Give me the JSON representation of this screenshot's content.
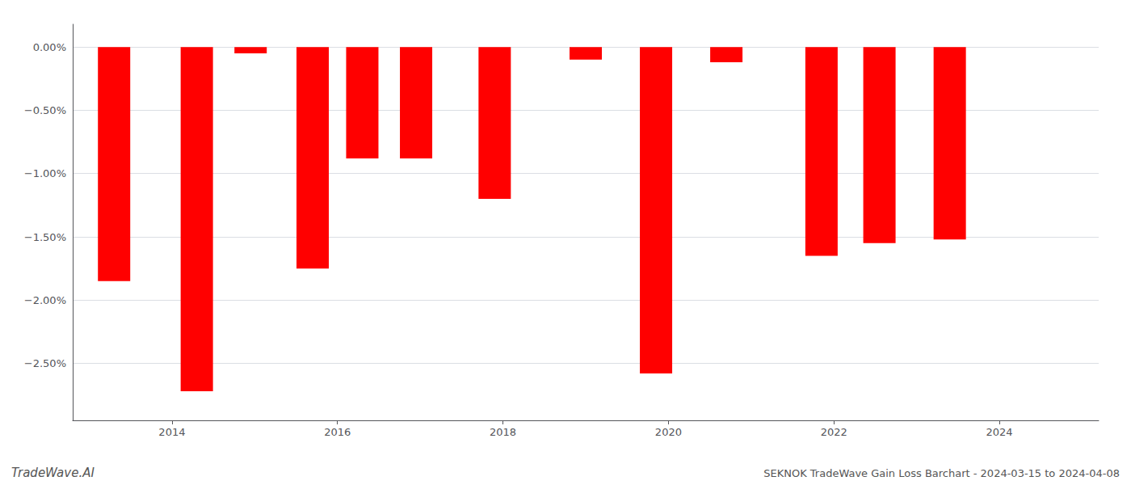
{
  "chart_data": {
    "type": "bar",
    "x": [
      2013.3,
      2014.3,
      2014.95,
      2015.7,
      2016.3,
      2016.95,
      2017.9,
      2019.0,
      2019.85,
      2020.7,
      2021.85,
      2022.55,
      2023.4
    ],
    "values": [
      -1.85,
      -2.72,
      -0.05,
      -1.75,
      -0.88,
      -0.88,
      -1.2,
      -0.1,
      -2.58,
      -0.12,
      -1.65,
      -1.55,
      -1.52
    ],
    "color": "#ff0000",
    "xlim": [
      2012.8,
      2025.2
    ],
    "xticks": [
      2014,
      2016,
      2018,
      2020,
      2022,
      2024
    ],
    "ylim": [
      -2.95,
      0.18
    ],
    "yticks": [
      {
        "value": 0.0,
        "label": "0.00%"
      },
      {
        "value": -0.5,
        "label": "−0.50%"
      },
      {
        "value": -1.0,
        "label": "−1.00%"
      },
      {
        "value": -1.5,
        "label": "−1.50%"
      },
      {
        "value": -2.0,
        "label": "−2.00%"
      },
      {
        "value": -2.5,
        "label": "−2.50%"
      }
    ],
    "grid": true,
    "annotations": [
      "TradeWave.AI",
      "SEKNOK TradeWave Gain Loss Barchart - 2024-03-15 to 2024-04-08"
    ]
  }
}
